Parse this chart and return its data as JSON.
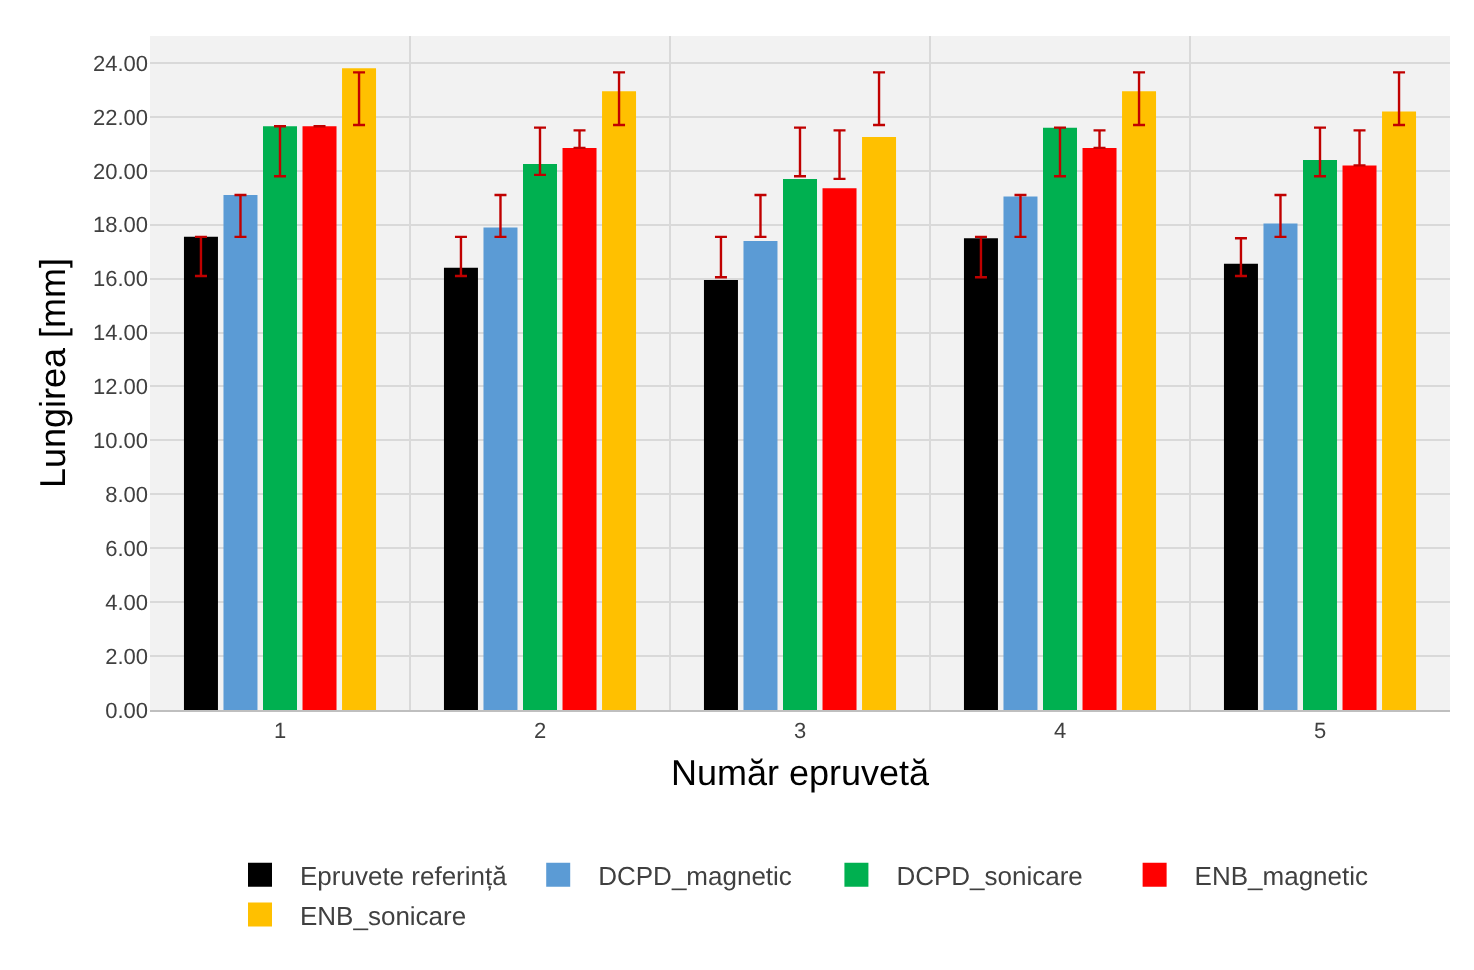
{
  "chart_data": {
    "type": "bar",
    "xlabel": "Număr epruvetă",
    "ylabel": "Lungirea [mm]",
    "categories": [
      "1",
      "2",
      "3",
      "4",
      "5"
    ],
    "series": [
      {
        "name": "Epruvete referință",
        "color": "#000000",
        "values": [
          17.55,
          16.4,
          15.95,
          17.5,
          16.55
        ],
        "errors": [
          [
            16.1,
            17.55
          ],
          [
            16.1,
            17.55
          ],
          [
            16.05,
            17.55
          ],
          [
            16.05,
            17.55
          ],
          [
            16.1,
            17.5
          ]
        ]
      },
      {
        "name": "DCPD_magnetic",
        "color": "#5b9bd5",
        "values": [
          19.1,
          17.9,
          17.4,
          19.05,
          18.05
        ],
        "errors": [
          [
            17.55,
            19.1
          ],
          [
            17.55,
            19.1
          ],
          [
            17.55,
            19.1
          ],
          [
            17.55,
            19.1
          ],
          [
            17.55,
            19.1
          ]
        ]
      },
      {
        "name": "DCPD_sonicare",
        "color": "#00b050",
        "values": [
          21.65,
          20.25,
          19.7,
          21.6,
          20.4
        ],
        "errors": [
          [
            19.8,
            21.65
          ],
          [
            19.85,
            21.6
          ],
          [
            19.8,
            21.6
          ],
          [
            19.8,
            21.6
          ],
          [
            19.8,
            21.6
          ]
        ]
      },
      {
        "name": "ENB_magnetic",
        "color": "#ff0000",
        "values": [
          21.65,
          20.85,
          19.35,
          20.85,
          20.2
        ],
        "errors": [
          null,
          [
            20.85,
            21.5
          ],
          [
            19.7,
            21.5
          ],
          [
            20.85,
            21.5
          ],
          [
            20.2,
            21.5
          ]
        ]
      },
      {
        "name": "ENB_sonicare",
        "color": "#ffc000",
        "values": [
          23.8,
          22.95,
          21.25,
          22.95,
          22.2
        ],
        "errors": [
          [
            21.7,
            23.65
          ],
          [
            21.7,
            23.65
          ],
          [
            21.7,
            23.65
          ],
          [
            21.7,
            23.65
          ],
          [
            21.7,
            23.65
          ]
        ]
      }
    ],
    "ylim": [
      0,
      25
    ],
    "yticks": [
      {
        "value": 0,
        "label": "0.00"
      },
      {
        "value": 2,
        "label": "2.00"
      },
      {
        "value": 4,
        "label": "4.00"
      },
      {
        "value": 6,
        "label": "6.00"
      },
      {
        "value": 8,
        "label": "8.00"
      },
      {
        "value": 10,
        "label": "10.00"
      },
      {
        "value": 12,
        "label": "12.00"
      },
      {
        "value": 14,
        "label": "14.00"
      },
      {
        "value": 16,
        "label": "16.00"
      },
      {
        "value": 18,
        "label": "18.00"
      },
      {
        "value": 20,
        "label": "20.00"
      },
      {
        "value": 22,
        "label": "22.00"
      },
      {
        "value": 24,
        "label": "24.00"
      }
    ],
    "grid": true,
    "legend": "bottom"
  }
}
